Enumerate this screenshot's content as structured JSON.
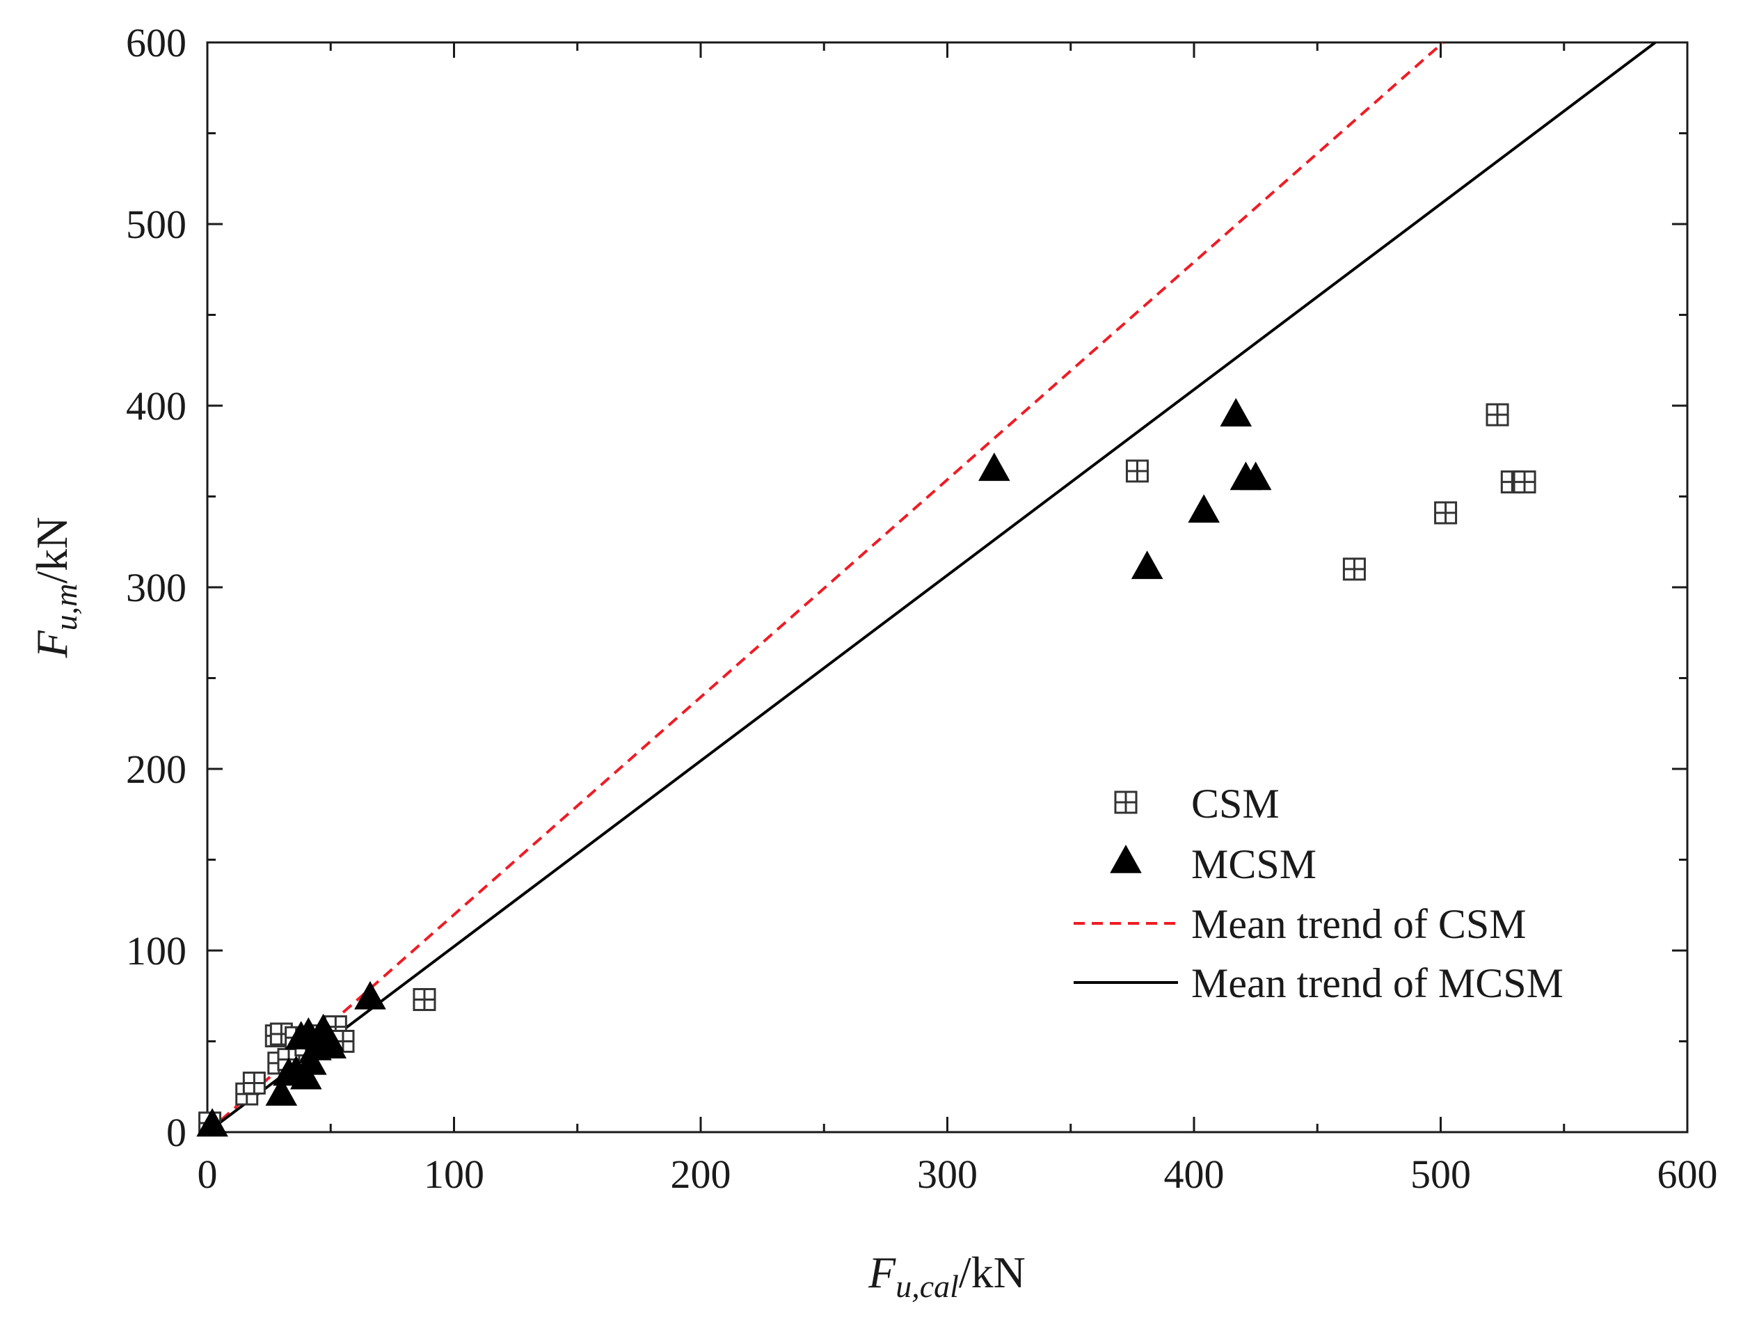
{
  "chart_data": {
    "type": "scatter",
    "title": "",
    "xlabel": {
      "main": "F",
      "sub": "u,cal",
      "unit": "/kN"
    },
    "ylabel": {
      "main": "F",
      "sub": "u,m",
      "unit": "/kN"
    },
    "xlim": [
      0,
      600
    ],
    "ylim": [
      0,
      600
    ],
    "x_ticks": [
      0,
      100,
      200,
      300,
      400,
      500,
      600
    ],
    "y_ticks": [
      0,
      100,
      200,
      300,
      400,
      500,
      600
    ],
    "minor_step": 50,
    "grid": false,
    "legend_position": "center-right",
    "series": [
      {
        "name": "CSM",
        "marker": "square-plus",
        "color": "#333333",
        "points": [
          [
            1,
            5
          ],
          [
            28,
            53
          ],
          [
            30,
            54
          ],
          [
            29,
            38
          ],
          [
            33,
            40
          ],
          [
            16,
            21
          ],
          [
            19,
            27
          ],
          [
            36,
            52
          ],
          [
            40,
            48
          ],
          [
            45,
            53
          ],
          [
            50,
            55
          ],
          [
            52,
            58
          ],
          [
            55,
            50
          ],
          [
            88,
            73
          ],
          [
            377,
            364
          ],
          [
            465,
            310
          ],
          [
            502,
            341
          ],
          [
            523,
            395
          ],
          [
            529,
            358
          ],
          [
            534,
            358
          ]
        ]
      },
      {
        "name": "MCSM",
        "marker": "triangle",
        "color": "#000000",
        "points": [
          [
            2,
            4
          ],
          [
            30,
            21
          ],
          [
            33,
            32
          ],
          [
            36,
            33
          ],
          [
            40,
            30
          ],
          [
            42,
            38
          ],
          [
            38,
            52
          ],
          [
            41,
            54
          ],
          [
            44,
            46
          ],
          [
            47,
            56
          ],
          [
            49,
            51
          ],
          [
            50,
            47
          ],
          [
            66,
            74
          ],
          [
            319,
            365
          ],
          [
            381,
            311
          ],
          [
            404,
            342
          ],
          [
            417,
            395
          ],
          [
            421,
            360
          ],
          [
            425,
            360
          ]
        ]
      },
      {
        "name": "Mean trend of CSM",
        "line": "dashed",
        "color": "#ee1c25",
        "x": [
          0,
          501
        ],
        "y": [
          0,
          600
        ]
      },
      {
        "name": "Mean trend of MCSM",
        "line": "solid",
        "color": "#000000",
        "x": [
          0,
          587
        ],
        "y": [
          0,
          600
        ]
      }
    ]
  }
}
